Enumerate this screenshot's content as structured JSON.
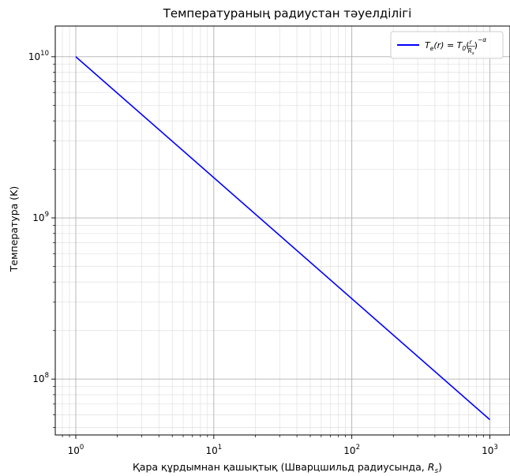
{
  "chart_data": {
    "type": "line",
    "title": "Температураның радиустан тәуелділігі",
    "xlabel_prefix": "Қара құрдымнан қашықтық (Шварцшильд радиусында, ",
    "xlabel_var": "R",
    "xlabel_sub": "s",
    "xlabel_suffix": ")",
    "ylabel": "Температура (K)",
    "xscale": "log",
    "yscale": "log",
    "xlim": [
      0.71,
      1400
    ],
    "ylim": [
      45000000,
      15500000000
    ],
    "grid": true,
    "legend_position": "top-right",
    "x_ticks": [
      {
        "value": 1,
        "base": "10",
        "exp": "0"
      },
      {
        "value": 10,
        "base": "10",
        "exp": "1"
      },
      {
        "value": 100,
        "base": "10",
        "exp": "2"
      },
      {
        "value": 1000,
        "base": "10",
        "exp": "3"
      }
    ],
    "y_ticks": [
      {
        "value": 100000000,
        "base": "10",
        "exp": "8"
      },
      {
        "value": 1000000000,
        "base": "10",
        "exp": "9"
      },
      {
        "value": 10000000000,
        "base": "10",
        "exp": "10"
      }
    ],
    "series": [
      {
        "name": "T_e(r) = T_0 (r/R_s)^(-α)",
        "color": "#0000ff",
        "x": [
          1,
          1000
        ],
        "y": [
          10000000000,
          56000000
        ]
      }
    ]
  }
}
